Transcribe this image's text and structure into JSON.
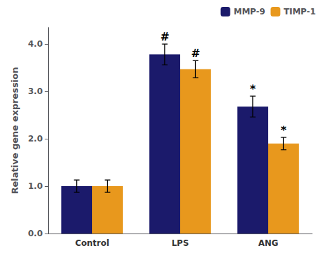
{
  "chart_data": {
    "type": "bar",
    "categories": [
      "Control",
      "LPS",
      "ANG"
    ],
    "series": [
      {
        "name": "MMP-9",
        "color": "#1b1a6b",
        "values": [
          1.0,
          3.78,
          2.68
        ],
        "errors": [
          0.13,
          0.22,
          0.22
        ]
      },
      {
        "name": "TIMP-1",
        "color": "#e8981d",
        "values": [
          1.0,
          3.47,
          1.9
        ],
        "errors": [
          0.13,
          0.18,
          0.13
        ]
      }
    ],
    "ylabel": "Relative gene expression",
    "ylim": [
      0.0,
      4.35
    ],
    "yticks": [
      {
        "value": 0,
        "label": "0.0"
      },
      {
        "value": 1,
        "label": "1.0"
      },
      {
        "value": 2,
        "label": "2.0"
      },
      {
        "value": 3,
        "label": "3.0"
      },
      {
        "value": 4,
        "label": "4.0"
      }
    ],
    "grid": false,
    "legend": "upper right",
    "annotations": [
      {
        "text": "#",
        "category": "LPS",
        "series": "MMP-9"
      },
      {
        "text": "#",
        "category": "LPS",
        "series": "TIMP-1"
      },
      {
        "text": "*",
        "category": "ANG",
        "series": "MMP-9"
      },
      {
        "text": "*",
        "category": "ANG",
        "series": "TIMP-1"
      }
    ]
  }
}
